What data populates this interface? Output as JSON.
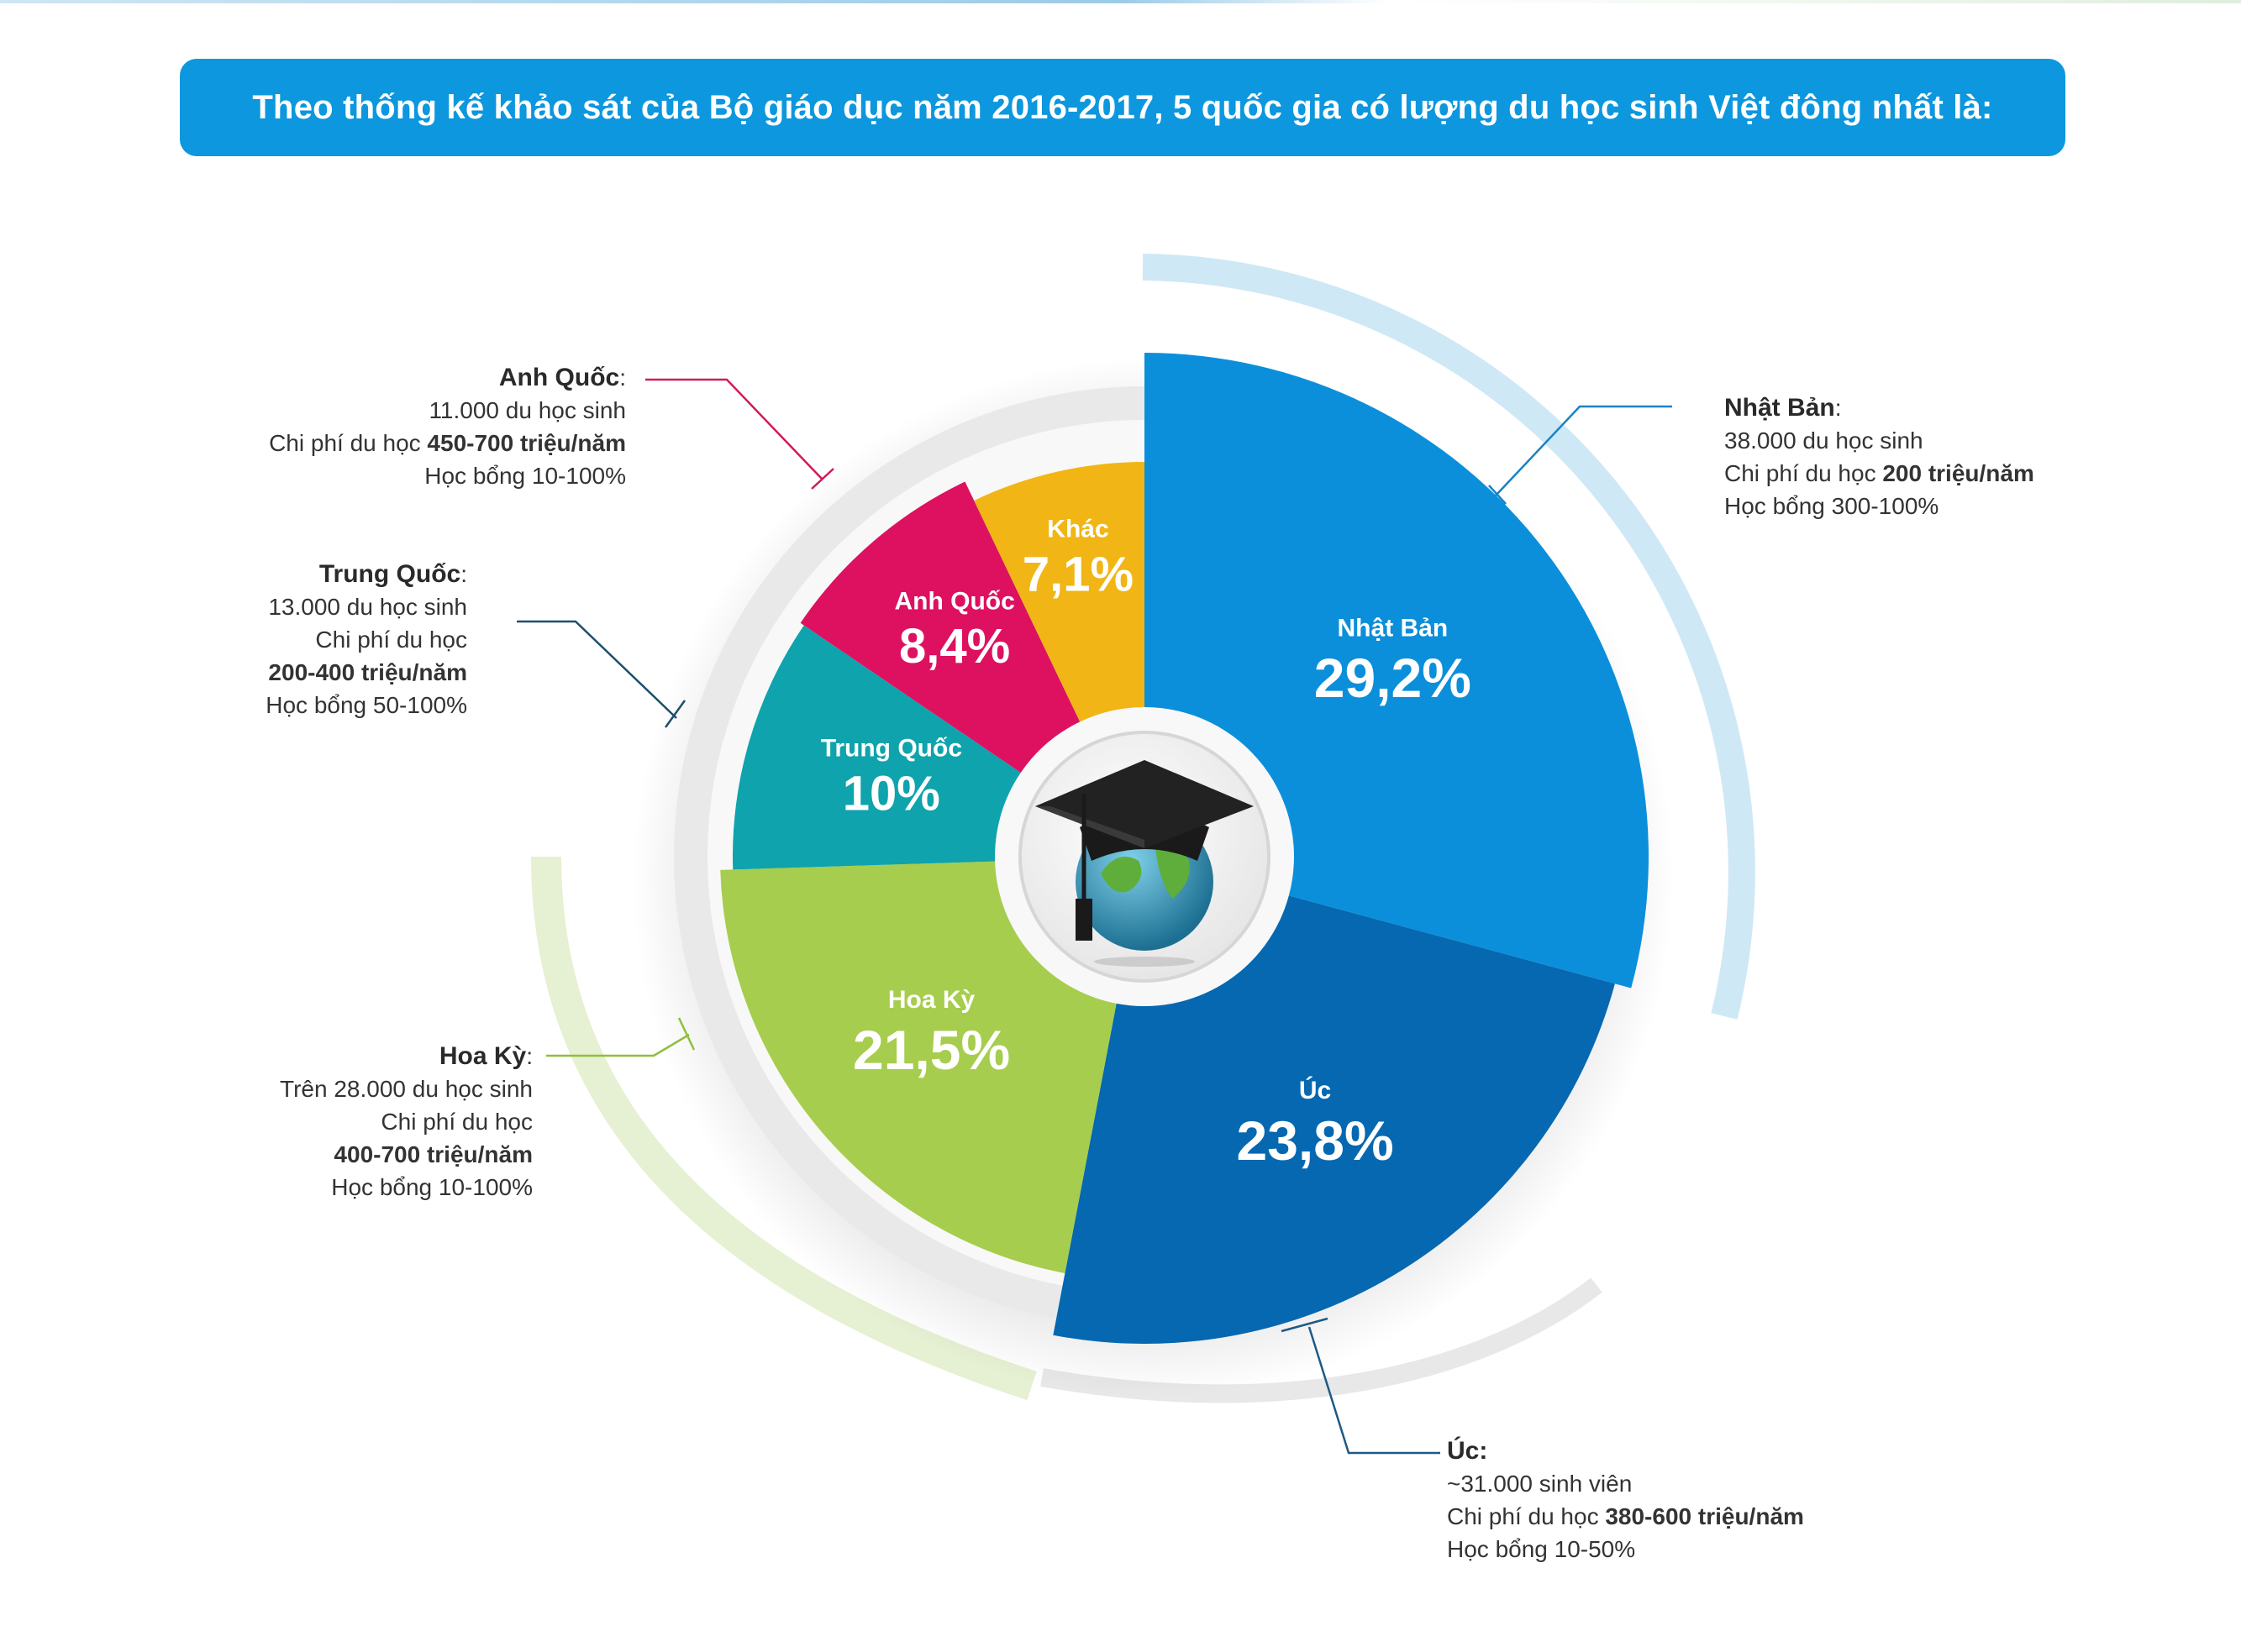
{
  "title": "Theo thống kế khảo sát của Bộ giáo dục năm 2016-2017, 5 quốc gia có lượng du học sinh Việt đông nhất là:",
  "chart_data": {
    "type": "pie",
    "title": "Theo thống kế khảo sát của Bộ giáo dục năm 2016-2017, 5 quốc gia có lượng du học sinh Việt đông nhất là:",
    "categories": [
      "Nhật Bản",
      "Úc",
      "Hoa Kỳ",
      "Trung Quốc",
      "Anh Quốc",
      "Khác"
    ],
    "values": [
      29.2,
      23.8,
      21.5,
      10,
      8.4,
      7.1
    ],
    "value_labels": [
      "29,2%",
      "23,8%",
      "21,5%",
      "10%",
      "8,4%",
      "7,1%"
    ],
    "colors": [
      "#0b8fdb",
      "#0568b0",
      "#a6cd4d",
      "#0fa3ad",
      "#dd1160",
      "#f1b615"
    ],
    "unit": "%"
  },
  "annotations": {
    "nhat_ban": {
      "heading": "Nhật Bản",
      "line1": "38.000 du học sinh",
      "cost_prefix": "Chi phí du học ",
      "cost_value": "200 triệu/năm",
      "scholarship": "Học bổng 300-100%"
    },
    "anh_quoc": {
      "heading": "Anh Quốc",
      "line1": "11.000 du học sinh",
      "cost_prefix": "Chi phí du học ",
      "cost_value": "450-700 triệu/năm",
      "scholarship": "Học bổng 10-100%"
    },
    "trung_quoc": {
      "heading": "Trung Quốc",
      "line1": "13.000 du học sinh",
      "cost_prefix": "Chi phí du học",
      "cost_value": "200-400 triệu/năm",
      "scholarship": "Học bổng 50-100%"
    },
    "hoa_ky": {
      "heading": "Hoa Kỳ",
      "line1": "Trên 28.000 du học sinh",
      "cost_prefix": "Chi phí du học",
      "cost_value": "400-700 triệu/năm",
      "scholarship": "Học bổng 10-100%"
    },
    "uc": {
      "heading": "Úc:",
      "line1": "~31.000 sinh viên",
      "cost_prefix": "Chi phí du học ",
      "cost_value": "380-600 triệu/năm",
      "scholarship": "Học bổng 10-50%"
    }
  }
}
